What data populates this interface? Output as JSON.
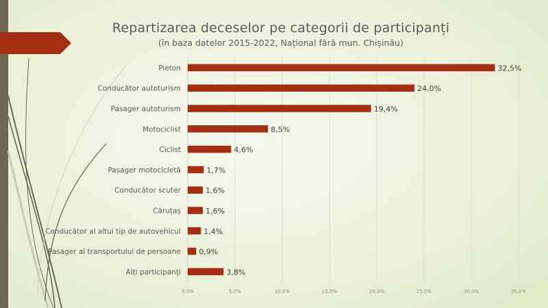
{
  "chart_data": {
    "type": "bar",
    "orientation": "horizontal",
    "title": "Repartizarea deceselor pe categorii de participanți",
    "subtitle": "(în baza datelor 2015-2022, Național fără mun. Chișinău)",
    "categories": [
      "Pieton",
      "Conducător autoturism",
      "Pasager autoturism",
      "Motociclist",
      "Ciclist",
      "Pasager motocicletă",
      "Conducător scuter",
      "Căruțaș",
      "Conducător al altui tip de autovehicul",
      "Pasager al transportului de persoane",
      "Alți participanți"
    ],
    "values": [
      32.5,
      24.0,
      19.4,
      8.5,
      4.6,
      1.7,
      1.6,
      1.6,
      1.4,
      0.9,
      3.8
    ],
    "value_labels": [
      "32,5%",
      "24,0%",
      "19,4%",
      "8,5%",
      "4,6%",
      "1,7%",
      "1,6%",
      "1,6%",
      "1,4%",
      "0,9%",
      "3,8%"
    ],
    "xlabel": "",
    "ylabel": "",
    "xlim": [
      0,
      35
    ],
    "x_ticks": [
      0,
      5,
      10,
      15,
      20,
      25,
      30,
      35
    ],
    "x_tick_labels": [
      "0,0%",
      "5,0%",
      "10,0%",
      "15,0%",
      "20,0%",
      "25,0%",
      "30,0%",
      "35,0%"
    ],
    "grid": true,
    "legend": "none",
    "bar_color": "#a52f13"
  }
}
